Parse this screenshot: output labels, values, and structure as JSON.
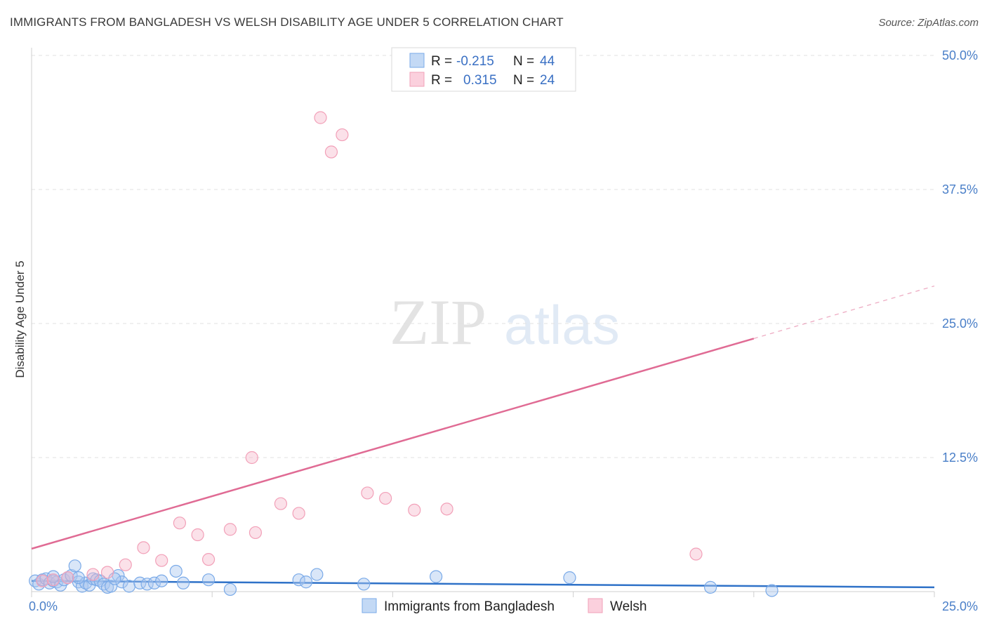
{
  "title": "IMMIGRANTS FROM BANGLADESH VS WELSH DISABILITY AGE UNDER 5 CORRELATION CHART",
  "source": "Source: ZipAtlas.com",
  "watermark": {
    "zip": "ZIP",
    "atlas": "atlas"
  },
  "colors": {
    "blue": "#7aaae8",
    "blue_line": "#2f72c8",
    "pink": "#f2a0b8",
    "pink_line": "#e06b94",
    "tick": "#4a7fc8"
  },
  "legend": {
    "rows": [
      {
        "r_label": "R = ",
        "r_value": "-0.215",
        "n_label": "N = ",
        "n_value": "44"
      },
      {
        "r_label": "R = ",
        "r_value": "0.315",
        "n_label": "N = ",
        "n_value": "24"
      }
    ]
  },
  "chart_data": {
    "type": "scatter",
    "title": "IMMIGRANTS FROM BANGLADESH VS WELSH DISABILITY AGE UNDER 5 CORRELATION CHART",
    "xlabel": "",
    "ylabel": "Disability Age Under 5",
    "xlim": [
      0,
      25
    ],
    "ylim": [
      0,
      50
    ],
    "x_tick_labels": [
      "0.0%",
      "25.0%"
    ],
    "y_ticks": [
      12.5,
      25.0,
      37.5,
      50.0
    ],
    "y_tick_labels": [
      "12.5%",
      "25.0%",
      "37.5%",
      "50.0%"
    ],
    "grid": true,
    "legend_position": "top-center",
    "series": [
      {
        "name": "Immigrants from Bangladesh",
        "color": "#7aaae8",
        "trend": {
          "x": [
            0,
            25
          ],
          "y": [
            1.0,
            0.4
          ],
          "dashed_from": null
        },
        "points": [
          [
            0.1,
            1.0
          ],
          [
            0.2,
            0.7
          ],
          [
            0.3,
            1.1
          ],
          [
            0.4,
            1.2
          ],
          [
            0.5,
            0.8
          ],
          [
            0.6,
            1.0
          ],
          [
            0.7,
            0.9
          ],
          [
            0.8,
            0.6
          ],
          [
            0.9,
            1.1
          ],
          [
            1.0,
            1.3
          ],
          [
            1.1,
            1.5
          ],
          [
            1.2,
            2.4
          ],
          [
            1.3,
            0.9
          ],
          [
            1.4,
            0.5
          ],
          [
            1.5,
            0.8
          ],
          [
            1.6,
            0.6
          ],
          [
            1.7,
            1.2
          ],
          [
            1.8,
            1.1
          ],
          [
            1.9,
            1.0
          ],
          [
            2.0,
            0.7
          ],
          [
            2.1,
            0.4
          ],
          [
            2.2,
            0.5
          ],
          [
            2.4,
            1.5
          ],
          [
            2.5,
            0.9
          ],
          [
            2.7,
            0.5
          ],
          [
            3.0,
            0.8
          ],
          [
            3.2,
            0.7
          ],
          [
            3.4,
            0.8
          ],
          [
            3.6,
            1.0
          ],
          [
            4.0,
            1.9
          ],
          [
            4.2,
            0.8
          ],
          [
            4.9,
            1.1
          ],
          [
            5.5,
            0.2
          ],
          [
            7.4,
            1.1
          ],
          [
            7.6,
            0.9
          ],
          [
            7.9,
            1.6
          ],
          [
            9.2,
            0.7
          ],
          [
            11.2,
            1.4
          ],
          [
            14.9,
            1.3
          ],
          [
            18.8,
            0.4
          ],
          [
            20.5,
            0.1
          ],
          [
            1.3,
            1.3
          ],
          [
            2.3,
            1.2
          ],
          [
            0.6,
            1.4
          ]
        ]
      },
      {
        "name": "Welsh",
        "color": "#f2a0b8",
        "trend": {
          "x": [
            0,
            25
          ],
          "y": [
            4.0,
            28.5
          ],
          "dashed_from": 20
        },
        "points": [
          [
            0.3,
            1.0
          ],
          [
            0.6,
            1.1
          ],
          [
            1.0,
            1.3
          ],
          [
            1.7,
            1.6
          ],
          [
            2.1,
            1.8
          ],
          [
            2.6,
            2.5
          ],
          [
            3.1,
            4.1
          ],
          [
            3.6,
            2.9
          ],
          [
            4.1,
            6.4
          ],
          [
            4.6,
            5.3
          ],
          [
            4.9,
            3.0
          ],
          [
            5.5,
            5.8
          ],
          [
            6.2,
            5.5
          ],
          [
            6.1,
            12.5
          ],
          [
            6.9,
            8.2
          ],
          [
            7.4,
            7.3
          ],
          [
            8.0,
            44.2
          ],
          [
            8.3,
            41.0
          ],
          [
            8.6,
            42.6
          ],
          [
            9.3,
            9.2
          ],
          [
            9.8,
            8.7
          ],
          [
            10.6,
            7.6
          ],
          [
            11.5,
            7.7
          ],
          [
            18.4,
            3.5
          ]
        ]
      }
    ]
  }
}
